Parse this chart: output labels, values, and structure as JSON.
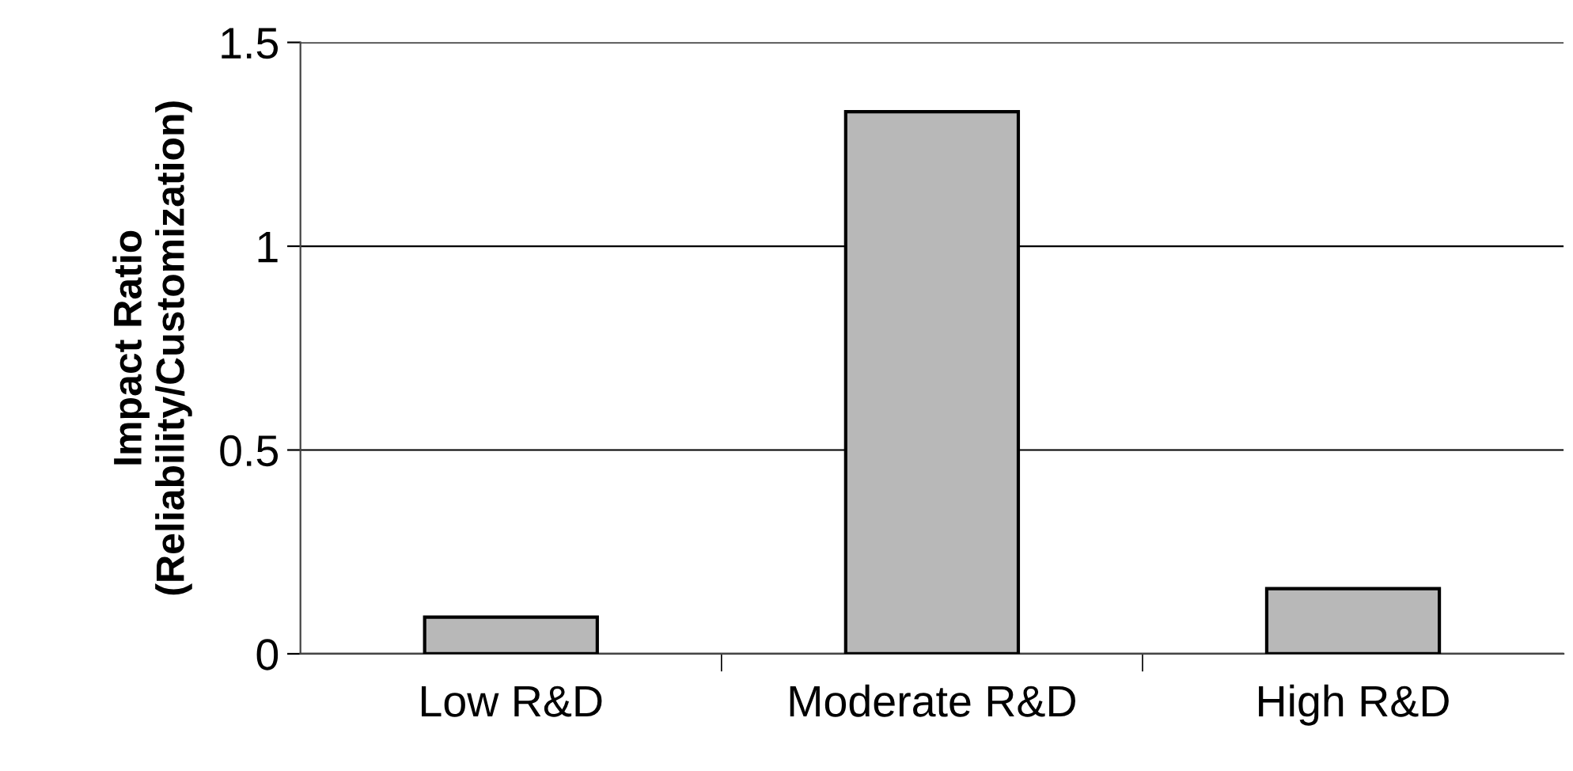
{
  "chart_data": {
    "type": "bar",
    "ylabel": "Impact Ratio\n(Reliability/Customization)",
    "categories": [
      "Low R&D",
      "Moderate R&D",
      "High R&D"
    ],
    "values": [
      0.09,
      1.33,
      0.16
    ],
    "color": "#b8b8b8",
    "ylim": [
      0,
      1.5
    ],
    "yticks": [
      0,
      0.5,
      1,
      1.5
    ],
    "grid": "y",
    "legend": false
  }
}
